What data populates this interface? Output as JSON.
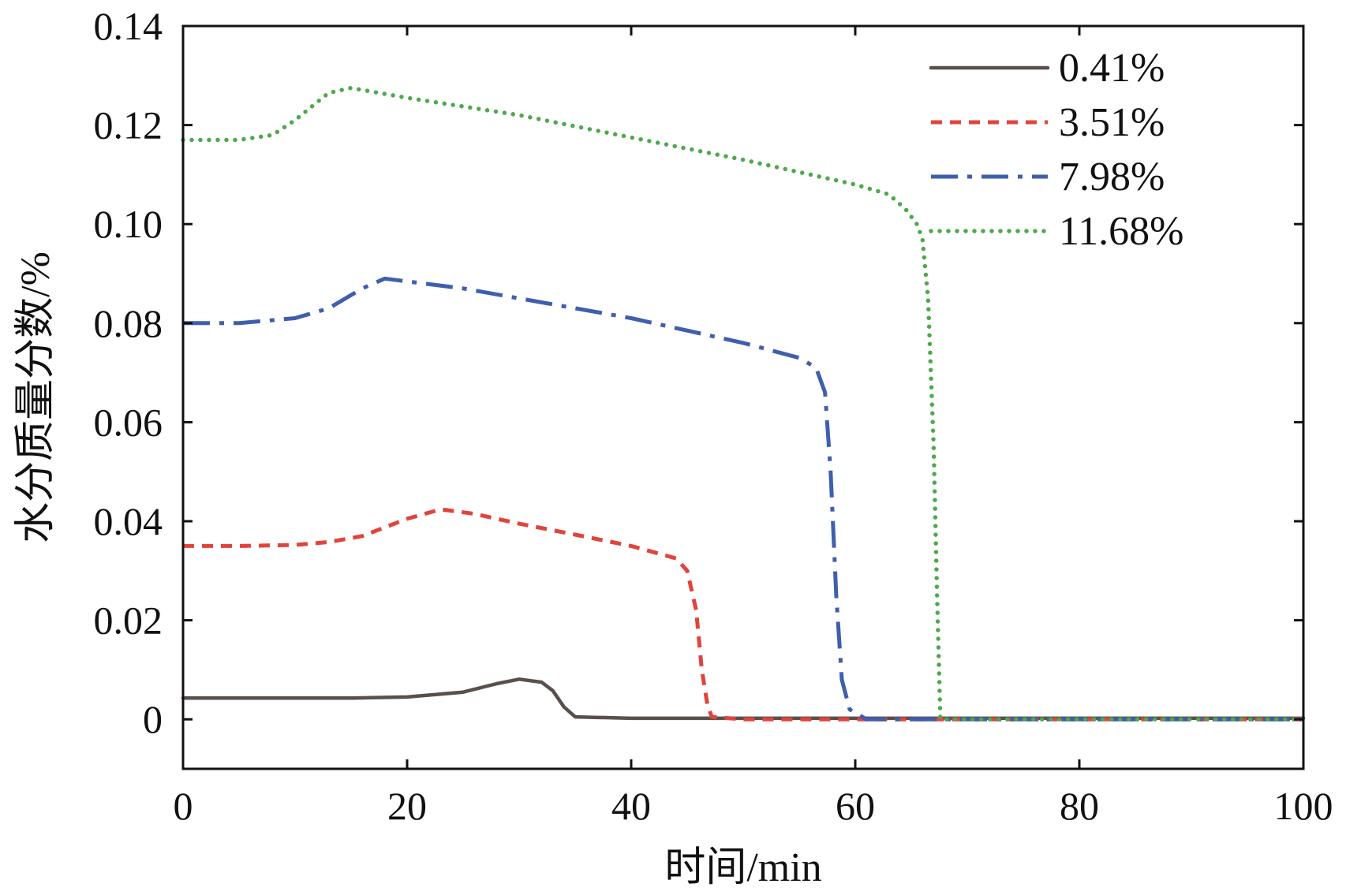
{
  "chart_data": {
    "type": "line",
    "title": "",
    "xlabel": "时间/min",
    "ylabel": "水分质量分数/%",
    "xlim": [
      0,
      100
    ],
    "ylim": [
      -0.01,
      0.14
    ],
    "xticks": [
      0,
      20,
      40,
      60,
      80,
      100
    ],
    "xtick_labels": [
      "0",
      "20",
      "40",
      "60",
      "80",
      "100"
    ],
    "yticks": [
      0,
      0.02,
      0.04,
      0.06,
      0.08,
      0.1,
      0.12,
      0.14
    ],
    "ytick_labels": [
      "0",
      "0.02",
      "0.04",
      "0.06",
      "0.08",
      "0.10",
      "0.12",
      "0.14"
    ],
    "grid": false,
    "legend_position": "top-right",
    "series": [
      {
        "name": "0.41%",
        "color": "#5a4f4b",
        "line_style": "solid",
        "x": [
          0,
          5,
          10,
          15,
          20,
          25,
          28,
          30,
          32,
          33,
          34,
          35,
          40,
          50,
          60,
          70,
          80,
          90,
          100
        ],
        "y": [
          0.0043,
          0.0043,
          0.0043,
          0.0043,
          0.0045,
          0.0055,
          0.0072,
          0.0081,
          0.0075,
          0.0058,
          0.0025,
          0.0005,
          0.0002,
          0.0002,
          0.0002,
          0.0002,
          0.0002,
          0.0002,
          0.0002
        ]
      },
      {
        "name": "3.51%",
        "color": "#e0443c",
        "line_style": "dashed",
        "x": [
          0,
          5,
          10,
          13,
          16,
          20,
          23,
          26,
          30,
          35,
          40,
          44,
          45,
          45.8,
          46.3,
          46.8,
          47.2,
          50,
          60,
          70,
          80,
          90,
          100
        ],
        "y": [
          0.035,
          0.035,
          0.0352,
          0.0358,
          0.037,
          0.0405,
          0.0424,
          0.0415,
          0.0395,
          0.0373,
          0.035,
          0.0325,
          0.03,
          0.022,
          0.01,
          0.003,
          0.0005,
          0.0,
          0.0,
          0.0,
          0.0,
          0.0,
          0.0
        ]
      },
      {
        "name": "7.98%",
        "color": "#3f5fae",
        "line_style": "dashdot",
        "x": [
          0,
          5,
          10,
          13,
          16,
          18,
          25,
          30,
          40,
          50,
          55,
          56.5,
          57.3,
          57.8,
          58.3,
          58.8,
          59.5,
          61,
          65,
          70,
          80,
          90,
          100
        ],
        "y": [
          0.08,
          0.08,
          0.081,
          0.083,
          0.087,
          0.089,
          0.087,
          0.085,
          0.081,
          0.076,
          0.073,
          0.071,
          0.066,
          0.05,
          0.025,
          0.008,
          0.002,
          0.0,
          0.0,
          0.0,
          0.0,
          0.0,
          0.0
        ]
      },
      {
        "name": "11.68%",
        "color": "#4fa84d",
        "line_style": "dotted",
        "x": [
          0,
          5,
          8,
          10,
          13,
          15,
          20,
          30,
          40,
          50,
          60,
          63,
          64.5,
          65.5,
          66,
          66.5,
          67,
          67.3,
          67.6,
          70,
          80,
          90,
          100
        ],
        "y": [
          0.117,
          0.117,
          0.118,
          0.121,
          0.1265,
          0.1275,
          0.1255,
          0.122,
          0.1175,
          0.113,
          0.108,
          0.106,
          0.103,
          0.1,
          0.097,
          0.085,
          0.055,
          0.025,
          0.0,
          0.0,
          0.0,
          0.0,
          0.0
        ]
      }
    ]
  }
}
